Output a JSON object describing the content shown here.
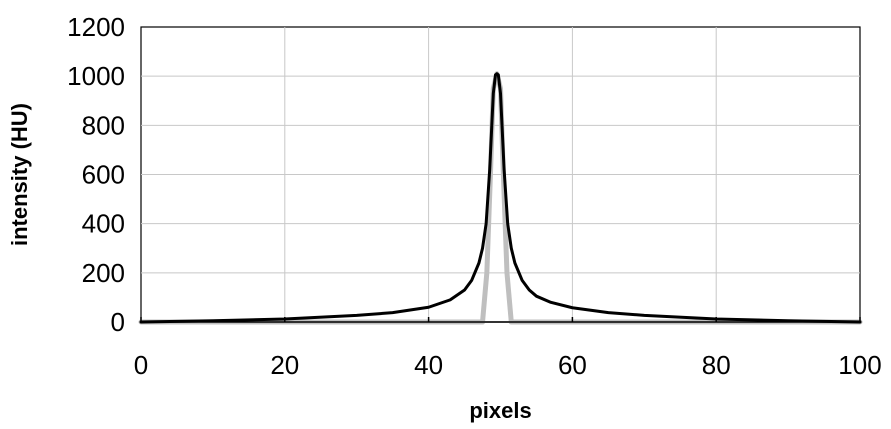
{
  "chart_data": {
    "type": "line",
    "title": "",
    "xlabel": "pixels",
    "ylabel": "intensity (HU)",
    "xlim": [
      0,
      100
    ],
    "ylim": [
      0,
      1200
    ],
    "x_ticks": [
      0,
      20,
      40,
      60,
      80,
      100
    ],
    "y_ticks": [
      0,
      200,
      400,
      600,
      800,
      1000,
      1200
    ],
    "grid": true,
    "legend": "none",
    "series": [
      {
        "color": "#bfbfbf",
        "x": [
          0,
          47.5,
          48.1,
          48.6,
          49.0,
          49.5,
          50.0,
          50.4,
          50.9,
          51.5,
          100
        ],
        "y": [
          0,
          0,
          200,
          600,
          950,
          1010,
          950,
          600,
          200,
          0,
          0
        ]
      },
      {
        "color": "#000000",
        "x": [
          0,
          10,
          20,
          30,
          35,
          40,
          43,
          45,
          46,
          47,
          47.5,
          48,
          48.5,
          49,
          49.3,
          49.5,
          49.7,
          50,
          50.5,
          51,
          51.5,
          52,
          53,
          54,
          55,
          57,
          60,
          65,
          70,
          80,
          90,
          100
        ],
        "y": [
          0,
          5,
          12,
          27,
          38,
          60,
          90,
          130,
          170,
          240,
          300,
          400,
          620,
          930,
          1005,
          1010,
          1005,
          930,
          620,
          400,
          300,
          240,
          170,
          130,
          105,
          80,
          58,
          38,
          27,
          12,
          5,
          0
        ]
      }
    ]
  }
}
